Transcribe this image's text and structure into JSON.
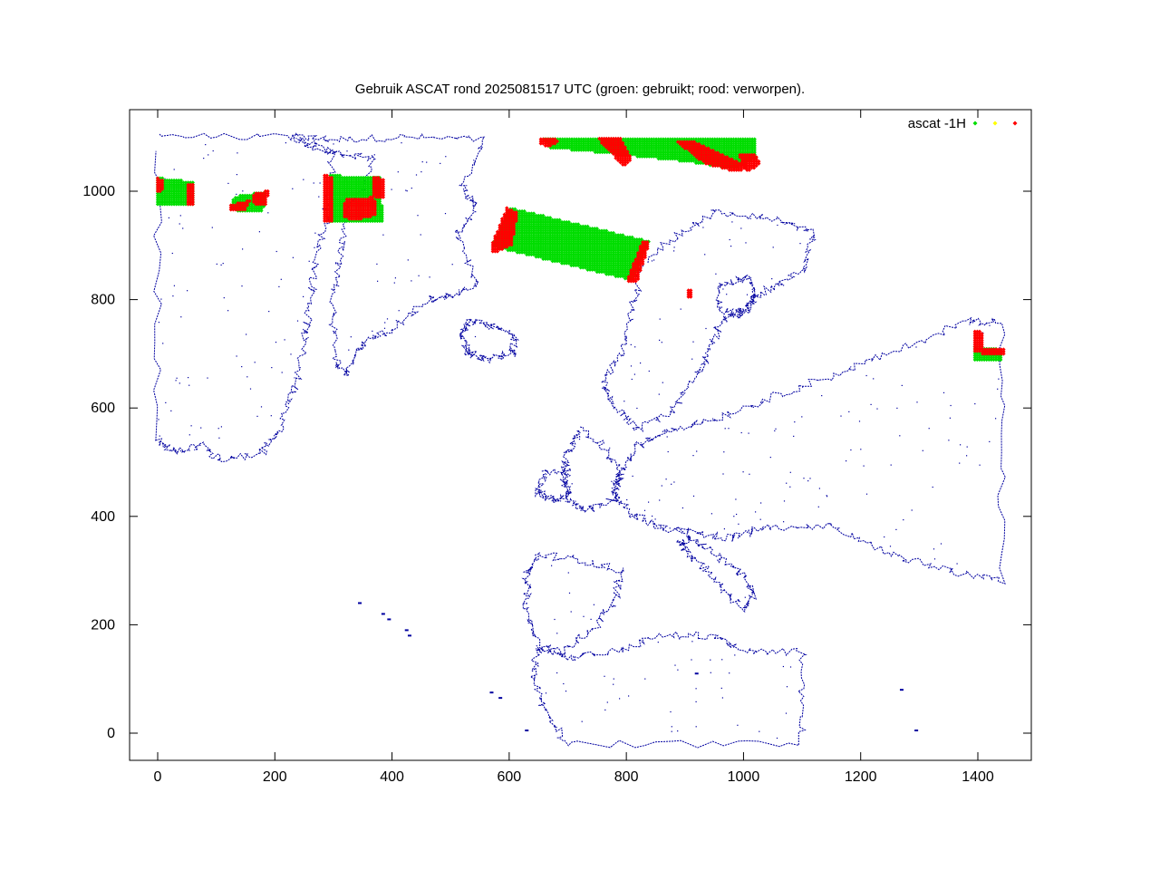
{
  "chart_data": {
    "type": "scatter",
    "title": "Gebruik ASCAT rond 2025081517 UTC (groen: gebruikt; rood: verworpen).",
    "xlabel": "",
    "ylabel": "",
    "xlim": [
      -50,
      1490
    ],
    "ylim": [
      -50,
      1150
    ],
    "x_ticks": [
      0,
      200,
      400,
      600,
      800,
      1000,
      1200,
      1400
    ],
    "y_ticks": [
      0,
      200,
      400,
      600,
      800,
      1000
    ],
    "grid": false,
    "legend": {
      "position": "top-right",
      "title": "ascat -1H",
      "entries": [
        {
          "color": "#00dd00"
        },
        {
          "color": "#ffff00"
        },
        {
          "color": "#ff0000"
        }
      ]
    },
    "colors": {
      "coastline": "#0000a0",
      "used": "#00dd00",
      "rejected": "#ff0000",
      "unknown": "#ffff00"
    },
    "observation_swaths": [
      {
        "status": "used",
        "polygon": [
          [
            0,
            1025
          ],
          [
            60,
            1018
          ],
          [
            62,
            972
          ],
          [
            0,
            975
          ]
        ]
      },
      {
        "status": "used",
        "polygon": [
          [
            130,
            990
          ],
          [
            185,
            1000
          ],
          [
            180,
            960
          ],
          [
            125,
            965
          ]
        ]
      },
      {
        "status": "used",
        "polygon": [
          [
            295,
            1030
          ],
          [
            380,
            1025
          ],
          [
            385,
            945
          ],
          [
            295,
            945
          ]
        ]
      },
      {
        "status": "used",
        "polygon": [
          [
            600,
            970
          ],
          [
            840,
            908
          ],
          [
            810,
            835
          ],
          [
            570,
            898
          ]
        ]
      },
      {
        "status": "used",
        "polygon": [
          [
            655,
            1098
          ],
          [
            1020,
            1098
          ],
          [
            1020,
            1060
          ],
          [
            985,
            1040
          ],
          [
            900,
            1055
          ],
          [
            670,
            1080
          ]
        ]
      },
      {
        "status": "used",
        "polygon": [
          [
            1395,
            715
          ],
          [
            1440,
            708
          ],
          [
            1440,
            685
          ],
          [
            1395,
            688
          ]
        ]
      }
    ],
    "rejected_clusters": [
      {
        "polygon": [
          [
            0,
            1025
          ],
          [
            10,
            1020
          ],
          [
            8,
            1000
          ],
          [
            0,
            1000
          ]
        ]
      },
      {
        "polygon": [
          [
            52,
            1015
          ],
          [
            62,
            1012
          ],
          [
            64,
            972
          ],
          [
            52,
            975
          ]
        ]
      },
      {
        "polygon": [
          [
            125,
            975
          ],
          [
            160,
            985
          ],
          [
            150,
            965
          ],
          [
            125,
            962
          ]
        ]
      },
      {
        "polygon": [
          [
            160,
            995
          ],
          [
            190,
            1002
          ],
          [
            185,
            975
          ],
          [
            165,
            972
          ]
        ]
      },
      {
        "polygon": [
          [
            320,
            985
          ],
          [
            370,
            990
          ],
          [
            375,
            955
          ],
          [
            335,
            945
          ],
          [
            315,
            955
          ]
        ]
      },
      {
        "polygon": [
          [
            285,
            1030
          ],
          [
            298,
            1028
          ],
          [
            300,
            945
          ],
          [
            285,
            945
          ]
        ]
      },
      {
        "polygon": [
          [
            365,
            1030
          ],
          [
            385,
            1022
          ],
          [
            387,
            985
          ],
          [
            368,
            990
          ]
        ]
      },
      {
        "polygon": [
          [
            596,
            970
          ],
          [
            615,
            960
          ],
          [
            605,
            900
          ],
          [
            572,
            885
          ],
          [
            568,
            898
          ]
        ]
      },
      {
        "polygon": [
          [
            800,
            835
          ],
          [
            818,
            830
          ],
          [
            840,
            905
          ],
          [
            828,
            910
          ]
        ]
      },
      {
        "polygon": [
          [
            655,
            1098
          ],
          [
            690,
            1095
          ],
          [
            665,
            1080
          ],
          [
            650,
            1090
          ]
        ]
      },
      {
        "polygon": [
          [
            750,
            1098
          ],
          [
            790,
            1098
          ],
          [
            810,
            1060
          ],
          [
            795,
            1045
          ]
        ]
      },
      {
        "polygon": [
          [
            880,
            1095
          ],
          [
            910,
            1095
          ],
          [
            1010,
            1045
          ],
          [
            990,
            1035
          ],
          [
            935,
            1050
          ]
        ]
      },
      {
        "polygon": [
          [
            990,
            1068
          ],
          [
            1020,
            1068
          ],
          [
            1030,
            1050
          ],
          [
            1005,
            1035
          ]
        ]
      },
      {
        "polygon": [
          [
            1395,
            745
          ],
          [
            1408,
            740
          ],
          [
            1410,
            705
          ],
          [
            1395,
            705
          ]
        ]
      },
      {
        "polygon": [
          [
            1408,
            712
          ],
          [
            1445,
            712
          ],
          [
            1445,
            700
          ],
          [
            1408,
            700
          ]
        ]
      },
      {
        "polygon": [
          [
            906,
            818
          ],
          [
            914,
            818
          ],
          [
            914,
            805
          ],
          [
            906,
            805
          ]
        ]
      }
    ],
    "land_outlines": [
      {
        "name": "greenland",
        "polygon": [
          [
            230,
            1100
          ],
          [
            300,
            1095
          ],
          [
            420,
            1100
          ],
          [
            560,
            1095
          ],
          [
            520,
            1010
          ],
          [
            545,
            970
          ],
          [
            510,
            920
          ],
          [
            545,
            830
          ],
          [
            500,
            805
          ],
          [
            460,
            800
          ],
          [
            400,
            745
          ],
          [
            350,
            720
          ],
          [
            320,
            660
          ],
          [
            300,
            700
          ],
          [
            300,
            800
          ],
          [
            310,
            870
          ],
          [
            320,
            950
          ],
          [
            370,
            1060
          ],
          [
            300,
            1070
          ]
        ]
      },
      {
        "name": "canada",
        "polygon": [
          [
            0,
            1100
          ],
          [
            230,
            1100
          ],
          [
            300,
            1070
          ],
          [
            290,
            960
          ],
          [
            270,
            870
          ],
          [
            260,
            790
          ],
          [
            250,
            720
          ],
          [
            235,
            640
          ],
          [
            210,
            560
          ],
          [
            180,
            520
          ],
          [
            110,
            500
          ],
          [
            80,
            530
          ],
          [
            30,
            520
          ],
          [
            0,
            540
          ]
        ]
      },
      {
        "name": "iceland",
        "polygon": [
          [
            530,
            760
          ],
          [
            570,
            750
          ],
          [
            610,
            735
          ],
          [
            605,
            700
          ],
          [
            565,
            690
          ],
          [
            530,
            700
          ],
          [
            520,
            730
          ]
        ]
      },
      {
        "name": "scandinavia",
        "polygon": [
          [
            830,
            870
          ],
          [
            900,
            930
          ],
          [
            950,
            960
          ],
          [
            1050,
            950
          ],
          [
            1120,
            920
          ],
          [
            1100,
            850
          ],
          [
            1040,
            820
          ],
          [
            1000,
            780
          ],
          [
            960,
            760
          ],
          [
            940,
            700
          ],
          [
            920,
            660
          ],
          [
            880,
            600
          ],
          [
            820,
            560
          ],
          [
            780,
            600
          ],
          [
            760,
            650
          ],
          [
            790,
            700
          ],
          [
            810,
            780
          ]
        ]
      },
      {
        "name": "great-britain",
        "polygon": [
          [
            720,
            560
          ],
          [
            760,
            530
          ],
          [
            790,
            480
          ],
          [
            780,
            430
          ],
          [
            730,
            410
          ],
          [
            700,
            430
          ],
          [
            690,
            470
          ],
          [
            700,
            520
          ]
        ]
      },
      {
        "name": "ireland",
        "polygon": [
          [
            660,
            480
          ],
          [
            700,
            490
          ],
          [
            700,
            440
          ],
          [
            670,
            430
          ],
          [
            650,
            445
          ]
        ]
      },
      {
        "name": "iberia",
        "polygon": [
          [
            650,
            330
          ],
          [
            720,
            320
          ],
          [
            790,
            300
          ],
          [
            780,
            240
          ],
          [
            740,
            190
          ],
          [
            690,
            150
          ],
          [
            650,
            160
          ],
          [
            630,
            230
          ],
          [
            630,
            290
          ]
        ]
      },
      {
        "name": "africa",
        "polygon": [
          [
            650,
            160
          ],
          [
            700,
            140
          ],
          [
            780,
            150
          ],
          [
            860,
            180
          ],
          [
            950,
            180
          ],
          [
            1000,
            150
          ],
          [
            1100,
            150
          ],
          [
            1100,
            -20
          ],
          [
            700,
            -20
          ],
          [
            660,
            40
          ],
          [
            640,
            110
          ]
        ]
      },
      {
        "name": "italy",
        "polygon": [
          [
            910,
            360
          ],
          [
            940,
            340
          ],
          [
            990,
            300
          ],
          [
            1020,
            260
          ],
          [
            1000,
            230
          ],
          [
            960,
            270
          ],
          [
            920,
            320
          ],
          [
            890,
            350
          ]
        ]
      },
      {
        "name": "continental-europe",
        "polygon": [
          [
            790,
            480
          ],
          [
            820,
            530
          ],
          [
            870,
            560
          ],
          [
            950,
            580
          ],
          [
            1050,
            620
          ],
          [
            1150,
            660
          ],
          [
            1250,
            700
          ],
          [
            1380,
            760
          ],
          [
            1440,
            760
          ],
          [
            1440,
            280
          ],
          [
            1350,
            300
          ],
          [
            1250,
            330
          ],
          [
            1150,
            380
          ],
          [
            1040,
            380
          ],
          [
            980,
            360
          ],
          [
            920,
            370
          ],
          [
            860,
            380
          ],
          [
            800,
            410
          ],
          [
            780,
            440
          ]
        ]
      },
      {
        "name": "baltic-lakes",
        "polygon": [
          [
            960,
            830
          ],
          [
            1010,
            840
          ],
          [
            1020,
            800
          ],
          [
            1000,
            770
          ],
          [
            960,
            780
          ]
        ]
      }
    ],
    "island_points": [
      [
        345,
        240
      ],
      [
        385,
        220
      ],
      [
        395,
        210
      ],
      [
        425,
        190
      ],
      [
        430,
        180
      ],
      [
        570,
        75
      ],
      [
        585,
        65
      ],
      [
        630,
        5
      ],
      [
        920,
        110
      ],
      [
        1270,
        80
      ],
      [
        1295,
        5
      ]
    ]
  }
}
